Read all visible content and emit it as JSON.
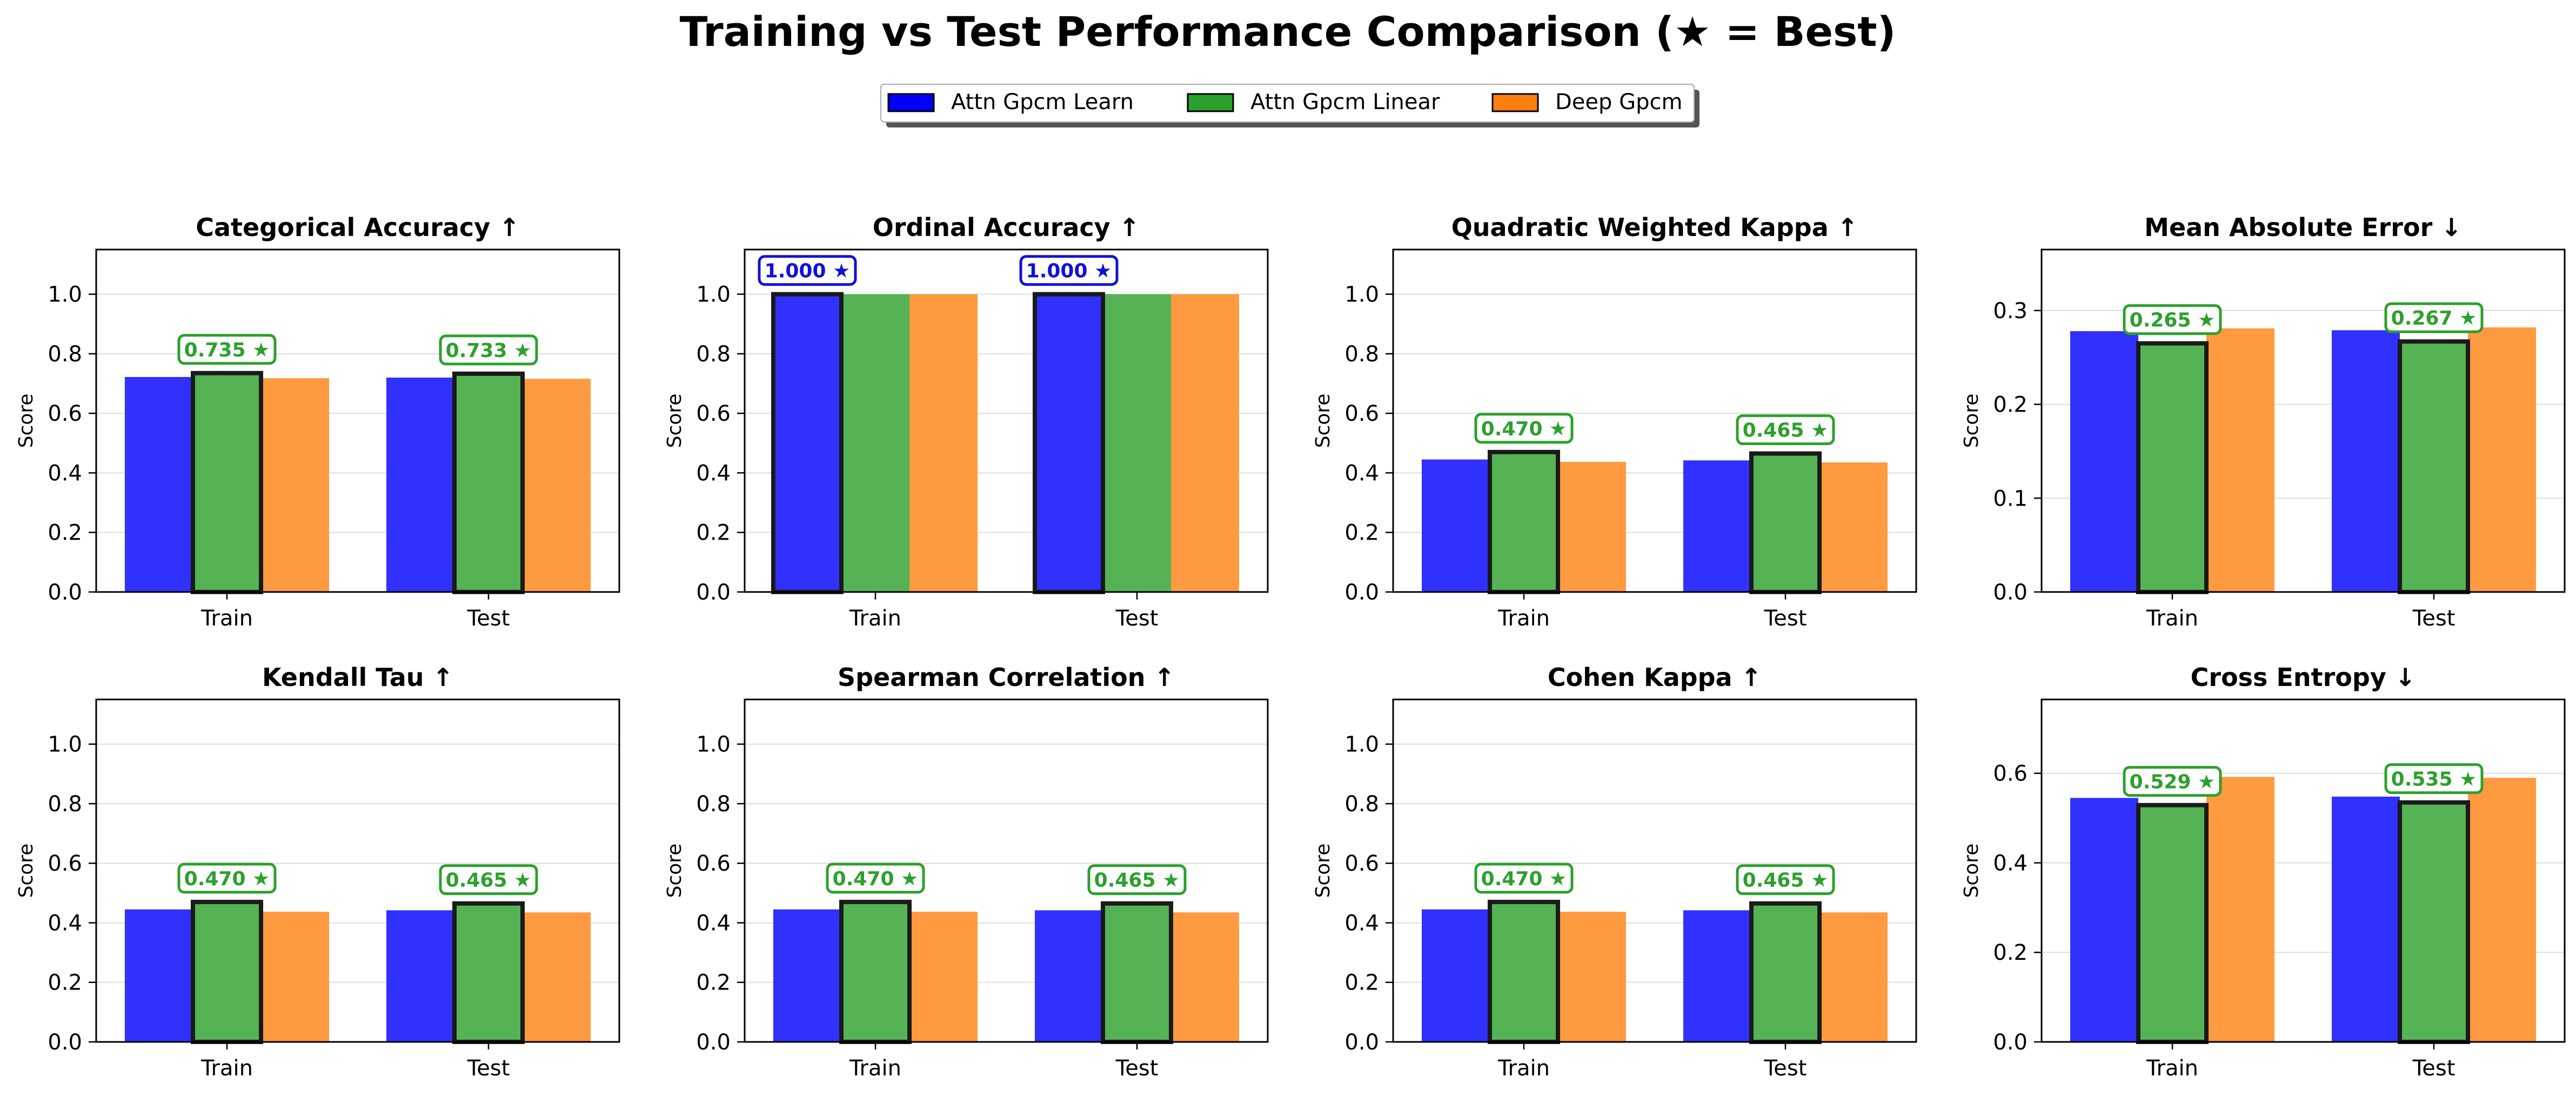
{
  "title": "Training vs Test Performance Comparison (★ = Best)",
  "legend": {
    "placement": "top-center",
    "entries": [
      {
        "label": "Attn Gpcm Learn",
        "color": "#0000ff"
      },
      {
        "label": "Attn Gpcm Linear",
        "color": "#2ca02c"
      },
      {
        "label": "Deep Gpcm",
        "color": "#ff7f0e"
      }
    ]
  },
  "chart_data": [
    {
      "type": "bar",
      "title": "Categorical Accuracy ↑",
      "ylabel": "Score",
      "categories": [
        "Train",
        "Test"
      ],
      "ylim": [
        0,
        1.15
      ],
      "yticks": [
        "0.0",
        "0.2",
        "0.4",
        "0.6",
        "0.8",
        "1.0"
      ],
      "grid": true,
      "series": [
        {
          "name": "Attn Gpcm Learn",
          "values": [
            0.722,
            0.72
          ]
        },
        {
          "name": "Attn Gpcm Linear",
          "values": [
            0.735,
            0.733
          ]
        },
        {
          "name": "Deep Gpcm",
          "values": [
            0.718,
            0.716
          ]
        }
      ],
      "best": [
        {
          "series": 1,
          "label": "0.735 ★"
        },
        {
          "series": 1,
          "label": "0.733 ★"
        }
      ]
    },
    {
      "type": "bar",
      "title": "Ordinal Accuracy ↑",
      "ylabel": "Score",
      "categories": [
        "Train",
        "Test"
      ],
      "ylim": [
        0,
        1.15
      ],
      "yticks": [
        "0.0",
        "0.2",
        "0.4",
        "0.6",
        "0.8",
        "1.0"
      ],
      "grid": true,
      "series": [
        {
          "name": "Attn Gpcm Learn",
          "values": [
            1.0,
            1.0
          ]
        },
        {
          "name": "Attn Gpcm Linear",
          "values": [
            1.0,
            1.0
          ]
        },
        {
          "name": "Deep Gpcm",
          "values": [
            1.0,
            1.0
          ]
        }
      ],
      "best": [
        {
          "series": 0,
          "label": "1.000 ★"
        },
        {
          "series": 0,
          "label": "1.000 ★"
        }
      ]
    },
    {
      "type": "bar",
      "title": "Quadratic Weighted Kappa ↑",
      "ylabel": "Score",
      "categories": [
        "Train",
        "Test"
      ],
      "ylim": [
        0,
        1.15
      ],
      "yticks": [
        "0.0",
        "0.2",
        "0.4",
        "0.6",
        "0.8",
        "1.0"
      ],
      "grid": true,
      "series": [
        {
          "name": "Attn Gpcm Learn",
          "values": [
            0.445,
            0.442
          ]
        },
        {
          "name": "Attn Gpcm Linear",
          "values": [
            0.47,
            0.465
          ]
        },
        {
          "name": "Deep Gpcm",
          "values": [
            0.437,
            0.435
          ]
        }
      ],
      "best": [
        {
          "series": 1,
          "label": "0.470 ★"
        },
        {
          "series": 1,
          "label": "0.465 ★"
        }
      ]
    },
    {
      "type": "bar",
      "title": "Mean Absolute Error ↓",
      "ylabel": "Score",
      "categories": [
        "Train",
        "Test"
      ],
      "ylim": [
        0,
        0.365
      ],
      "yticks": [
        "0.0",
        "0.1",
        "0.2",
        "0.3"
      ],
      "grid": true,
      "series": [
        {
          "name": "Attn Gpcm Learn",
          "values": [
            0.278,
            0.279
          ]
        },
        {
          "name": "Attn Gpcm Linear",
          "values": [
            0.265,
            0.267
          ]
        },
        {
          "name": "Deep Gpcm",
          "values": [
            0.281,
            0.282
          ]
        }
      ],
      "best": [
        {
          "series": 1,
          "label": "0.265 ★"
        },
        {
          "series": 1,
          "label": "0.267 ★"
        }
      ]
    },
    {
      "type": "bar",
      "title": "Kendall Tau ↑",
      "ylabel": "Score",
      "categories": [
        "Train",
        "Test"
      ],
      "ylim": [
        0,
        1.15
      ],
      "yticks": [
        "0.0",
        "0.2",
        "0.4",
        "0.6",
        "0.8",
        "1.0"
      ],
      "grid": true,
      "series": [
        {
          "name": "Attn Gpcm Learn",
          "values": [
            0.445,
            0.442
          ]
        },
        {
          "name": "Attn Gpcm Linear",
          "values": [
            0.47,
            0.465
          ]
        },
        {
          "name": "Deep Gpcm",
          "values": [
            0.437,
            0.435
          ]
        }
      ],
      "best": [
        {
          "series": 1,
          "label": "0.470 ★"
        },
        {
          "series": 1,
          "label": "0.465 ★"
        }
      ]
    },
    {
      "type": "bar",
      "title": "Spearman Correlation ↑",
      "ylabel": "Score",
      "categories": [
        "Train",
        "Test"
      ],
      "ylim": [
        0,
        1.15
      ],
      "yticks": [
        "0.0",
        "0.2",
        "0.4",
        "0.6",
        "0.8",
        "1.0"
      ],
      "grid": true,
      "series": [
        {
          "name": "Attn Gpcm Learn",
          "values": [
            0.445,
            0.442
          ]
        },
        {
          "name": "Attn Gpcm Linear",
          "values": [
            0.47,
            0.465
          ]
        },
        {
          "name": "Deep Gpcm",
          "values": [
            0.437,
            0.435
          ]
        }
      ],
      "best": [
        {
          "series": 1,
          "label": "0.470 ★"
        },
        {
          "series": 1,
          "label": "0.465 ★"
        }
      ]
    },
    {
      "type": "bar",
      "title": "Cohen Kappa ↑",
      "ylabel": "Score",
      "categories": [
        "Train",
        "Test"
      ],
      "ylim": [
        0,
        1.15
      ],
      "yticks": [
        "0.0",
        "0.2",
        "0.4",
        "0.6",
        "0.8",
        "1.0"
      ],
      "grid": true,
      "series": [
        {
          "name": "Attn Gpcm Learn",
          "values": [
            0.445,
            0.442
          ]
        },
        {
          "name": "Attn Gpcm Linear",
          "values": [
            0.47,
            0.465
          ]
        },
        {
          "name": "Deep Gpcm",
          "values": [
            0.437,
            0.435
          ]
        }
      ],
      "best": [
        {
          "series": 1,
          "label": "0.470 ★"
        },
        {
          "series": 1,
          "label": "0.465 ★"
        }
      ]
    },
    {
      "type": "bar",
      "title": "Cross Entropy ↓",
      "ylabel": "Score",
      "categories": [
        "Train",
        "Test"
      ],
      "ylim": [
        0,
        0.765
      ],
      "yticks": [
        "0.0",
        "0.2",
        "0.4",
        "0.6"
      ],
      "grid": true,
      "series": [
        {
          "name": "Attn Gpcm Learn",
          "values": [
            0.545,
            0.548
          ]
        },
        {
          "name": "Attn Gpcm Linear",
          "values": [
            0.529,
            0.535
          ]
        },
        {
          "name": "Deep Gpcm",
          "values": [
            0.592,
            0.59
          ]
        }
      ],
      "best": [
        {
          "series": 1,
          "label": "0.529 ★"
        },
        {
          "series": 1,
          "label": "0.535 ★"
        }
      ]
    }
  ]
}
